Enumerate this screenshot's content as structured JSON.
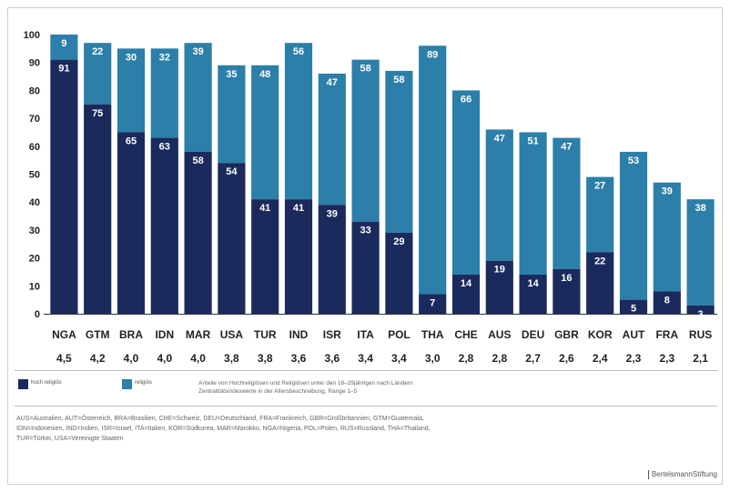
{
  "chart_data": {
    "type": "bar",
    "stacked": true,
    "categories": [
      "NGA",
      "GTM",
      "BRA",
      "IDN",
      "MAR",
      "USA",
      "TUR",
      "IND",
      "ISR",
      "ITA",
      "POL",
      "THA",
      "CHE",
      "AUS",
      "DEU",
      "GBR",
      "KOR",
      "AUT",
      "FRA",
      "RUS"
    ],
    "scores": [
      "4,5",
      "4,2",
      "4,0",
      "4,0",
      "4,0",
      "3,8",
      "3,8",
      "3,6",
      "3,6",
      "3,4",
      "3,4",
      "3,0",
      "2,8",
      "2,8",
      "2,7",
      "2,6",
      "2,4",
      "2,3",
      "2,3",
      "2,1"
    ],
    "series": [
      {
        "name": "hoch religiös",
        "color": "#1b2a5c",
        "values": [
          91,
          75,
          65,
          63,
          58,
          54,
          41,
          41,
          39,
          33,
          29,
          7,
          14,
          19,
          14,
          16,
          22,
          5,
          8,
          3
        ]
      },
      {
        "name": "religiös",
        "color": "#2c7fa8",
        "values": [
          9,
          22,
          30,
          32,
          39,
          35,
          48,
          56,
          47,
          58,
          58,
          89,
          66,
          47,
          51,
          47,
          27,
          53,
          39,
          38
        ]
      }
    ],
    "yticks": [
      0,
      10,
      20,
      30,
      40,
      50,
      60,
      70,
      80,
      90,
      100
    ],
    "ylim": [
      0,
      100
    ]
  },
  "legend": {
    "item1": "hoch religiös",
    "item2": "religiös",
    "note_line1": "Anteile von Hochreligiösen und Religiösen unter den 18–29jährigen nach Ländern",
    "note_line2": "Zentralitätsindexwerte in der Altersbeschreibung, Range 1–5"
  },
  "abbreviations": [
    "AUS=Australien, AUT=Österreich, BRA=Brasilien, CHE=Schweiz, DEU=Deutschland, FRA=Frankreich, GBR=Großbritannien, GTM=Guatemala,",
    "IDN=Indonesien, IND=Indien, ISR=Israel, ITA=Italien, KOR=Südkorea, MAR=Marokko, NGA=Nigeria, POL=Polen, RUS=Russland, THA=Thailand,",
    "TUR=Türkei, USA=Vereinigte Staaten"
  ],
  "brand": "BertelsmannStiftung"
}
